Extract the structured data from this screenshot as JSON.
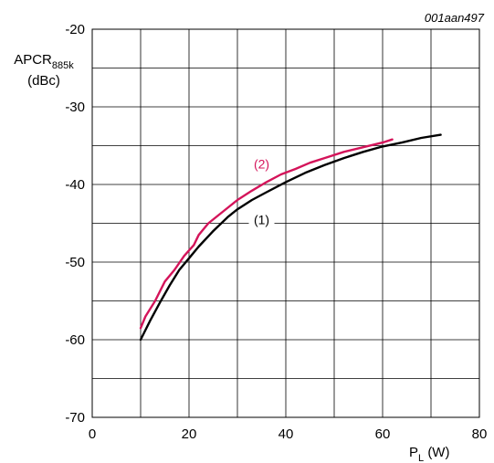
{
  "figure_code": "001aan497",
  "chart_data": {
    "type": "line",
    "ylabel": {
      "main": "APCR",
      "sub": "885k",
      "unit": "(dBc)"
    },
    "xlabel": {
      "main": "P",
      "sub": "L",
      "unit": "(W)"
    },
    "xlim": [
      0,
      80
    ],
    "ylim": [
      -70,
      -20
    ],
    "x_ticks": [
      0,
      20,
      40,
      60,
      80
    ],
    "y_ticks": [
      -20,
      -30,
      -40,
      -50,
      -60,
      -70
    ],
    "x_grid_step": 10,
    "y_grid_step": 5,
    "grid": true,
    "series": [
      {
        "name": "(1)",
        "color": "#000000",
        "x": [
          10,
          12,
          14,
          16,
          18,
          20,
          22,
          25,
          28,
          30,
          33,
          36,
          40,
          44,
          48,
          52,
          56,
          60,
          64,
          68,
          72
        ],
        "y": [
          -60,
          -57.5,
          -55.2,
          -53,
          -51,
          -49.5,
          -48,
          -46,
          -44.2,
          -43.2,
          -42,
          -41,
          -39.7,
          -38.5,
          -37.5,
          -36.6,
          -35.8,
          -35.1,
          -34.6,
          -34,
          -33.6
        ]
      },
      {
        "name": "(2)",
        "color": "#d4145a",
        "x": [
          10,
          11,
          13,
          15,
          17,
          19,
          21,
          22,
          24,
          26,
          28,
          30,
          33,
          36,
          39,
          42,
          45,
          48,
          52,
          56,
          60,
          62
        ],
        "y": [
          -58.5,
          -57,
          -55,
          -52.5,
          -51,
          -49.2,
          -47.8,
          -46.5,
          -45,
          -44,
          -43,
          -42,
          -40.8,
          -39.7,
          -38.7,
          -38,
          -37.2,
          -36.6,
          -35.8,
          -35.2,
          -34.6,
          -34.2
        ]
      }
    ],
    "series_labels": [
      {
        "text": "(1)",
        "color": "#000000",
        "at": [
          35,
          -45
        ]
      },
      {
        "text": "(2)",
        "color": "#d4145a",
        "at": [
          35,
          -37.8
        ]
      }
    ]
  }
}
